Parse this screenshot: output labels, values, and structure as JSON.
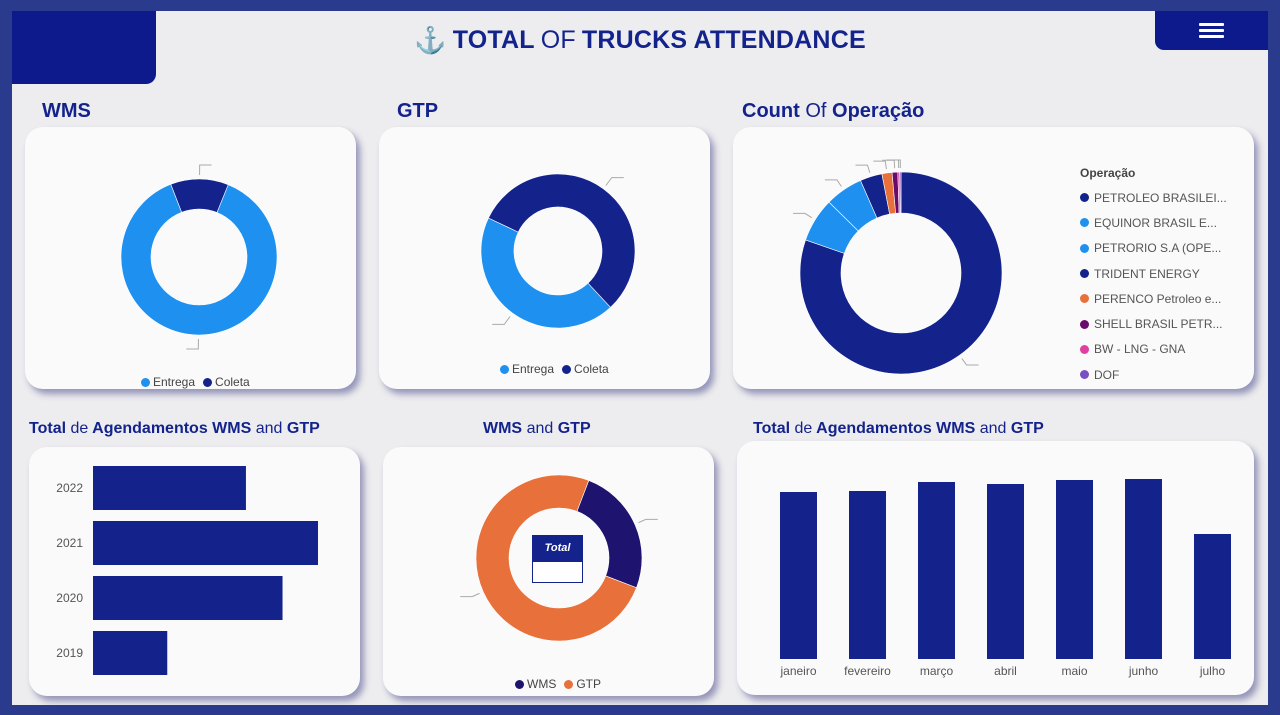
{
  "header": {
    "title_bold1": "TOTAL",
    "title_thin": "OF",
    "title_bold2": "TRUCKS ATTENDANCE",
    "anchor_icon": "anchor-icon",
    "menu_icon": "hamburger-menu-icon"
  },
  "sections": {
    "wms": "WMS",
    "gtp": "GTP",
    "count_bold1": "Count",
    "count_thin": "Of",
    "count_bold2": "Operação",
    "total_left_bold1": "Total",
    "total_left_thin": "de",
    "total_left_bold2": "Agendamentos WMS",
    "total_left_thin2": "and",
    "total_left_bold3": "GTP",
    "mid_bold1": "WMS",
    "mid_thin": "and",
    "mid_bold2": "GTP",
    "total_right_bold1": "Total",
    "total_right_thin": "de",
    "total_right_bold2": "Agendamentos WMS",
    "total_right_thin2": "and",
    "total_right_bold3": "GTP"
  },
  "legends": {
    "wms": [
      {
        "label": "Entrega",
        "color": "#1e90f0"
      },
      {
        "label": "Coleta",
        "color": "#14238c"
      }
    ],
    "gtp": [
      {
        "label": "Entrega",
        "color": "#1e90f0"
      },
      {
        "label": "Coleta",
        "color": "#14238c"
      }
    ],
    "mid": [
      {
        "label": "WMS",
        "color": "#1e1470"
      },
      {
        "label": "GTP",
        "color": "#e8703a"
      }
    ]
  },
  "operacao_legend": {
    "title": "Operação",
    "items": [
      {
        "label": "PETROLEO BRASILEI...",
        "color": "#14238c"
      },
      {
        "label": "EQUINOR BRASIL E...",
        "color": "#1e90f0"
      },
      {
        "label": "PETRORIO S.A (OPE...",
        "color": "#1e90f0"
      },
      {
        "label": "TRIDENT ENERGY",
        "color": "#14238c"
      },
      {
        "label": "PERENCO Petroleo e...",
        "color": "#e8703a"
      },
      {
        "label": "SHELL BRASIL PETR...",
        "color": "#6a0a6a"
      },
      {
        "label": "BW - LNG - GNA",
        "color": "#e040a0"
      },
      {
        "label": "DOF",
        "color": "#7a4fc0"
      }
    ]
  },
  "total_card": {
    "label": "Total",
    "value": ""
  },
  "chart_data": [
    {
      "type": "pie",
      "name": "WMS",
      "donut": true,
      "labels": [
        "Entrega",
        "Coleta"
      ],
      "values": [
        88,
        12
      ],
      "colors": [
        "#1e90f0",
        "#14238c"
      ]
    },
    {
      "type": "pie",
      "name": "GTP",
      "donut": true,
      "labels": [
        "Entrega",
        "Coleta"
      ],
      "values": [
        44,
        56
      ],
      "colors": [
        "#1e90f0",
        "#14238c"
      ]
    },
    {
      "type": "pie",
      "name": "Count Of Operação",
      "donut": true,
      "labels": [
        "PETROLEO BRASILEI...",
        "EQUINOR BRASIL E...",
        "PETRORIO S.A (OPE...",
        "TRIDENT ENERGY",
        "PERENCO Petroleo e...",
        "SHELL BRASIL PETR...",
        "BW - LNG - GNA",
        "DOF"
      ],
      "values": [
        79.5,
        7,
        6,
        3.5,
        1.6,
        0.9,
        0.3,
        0.2
      ],
      "colors": [
        "#14238c",
        "#1e90f0",
        "#1e90f0",
        "#14238c",
        "#e8703a",
        "#6a0a6a",
        "#e040a0",
        "#7a4fc0"
      ]
    },
    {
      "type": "bar",
      "orientation": "horizontal",
      "name": "Total de Agendamentos WMS and GTP (ano)",
      "categories": [
        "2022",
        "2021",
        "2020",
        "2019"
      ],
      "values": [
        138,
        203,
        171,
        67
      ],
      "color": "#14238c"
    },
    {
      "type": "pie",
      "name": "WMS and GTP",
      "donut": true,
      "labels": [
        "WMS",
        "GTP"
      ],
      "values": [
        25,
        75
      ],
      "colors": [
        "#1e1470",
        "#e8703a"
      ]
    },
    {
      "type": "bar",
      "name": "Total de Agendamentos WMS and GTP (mês)",
      "categories": [
        "janeiro",
        "fevereiro",
        "março",
        "abril",
        "maio",
        "junho",
        "julho"
      ],
      "values": [
        167,
        168,
        177,
        175,
        179,
        180,
        125
      ],
      "color": "#14238c"
    }
  ]
}
